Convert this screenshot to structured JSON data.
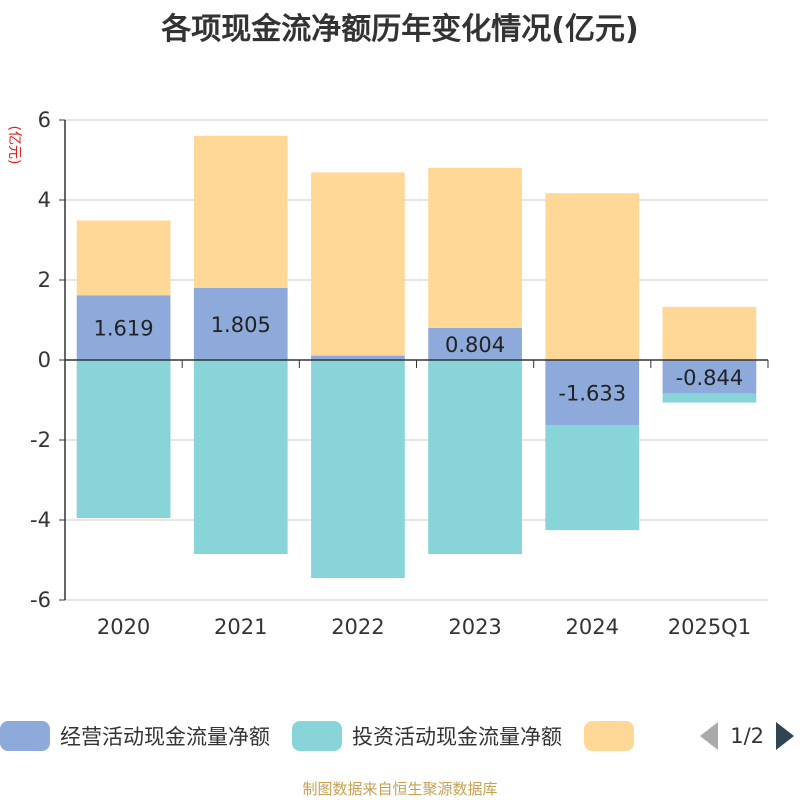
{
  "title": "各项现金流净额历年变化情况(亿元)",
  "source": "制图数据来自恒生聚源数据库",
  "pager": {
    "text": "1/2"
  },
  "chart_data": {
    "type": "bar",
    "stacked": true,
    "ylabel": "(亿元)",
    "ylim": [
      -6,
      6
    ],
    "yticks": [
      -6,
      -4,
      -2,
      0,
      2,
      4,
      6
    ],
    "grid": true,
    "legend_position": "bottom",
    "categories": [
      "2020",
      "2021",
      "2022",
      "2023",
      "2024",
      "2025Q1"
    ],
    "series": [
      {
        "name": "经营活动现金流量净额",
        "color": "#8eaadb",
        "values": [
          1.619,
          1.805,
          0.11,
          0.804,
          -1.633,
          -0.844
        ],
        "labels": [
          "1.619",
          "1.805",
          "",
          "0.804",
          "-1.633",
          "-0.844"
        ]
      },
      {
        "name": "投资活动现金流量净额",
        "color": "#88d4d8",
        "values": [
          -3.95,
          -4.85,
          -5.45,
          -4.85,
          -2.62,
          -0.22
        ],
        "labels": [
          "",
          "",
          "",
          "",
          "",
          ""
        ]
      },
      {
        "name": "",
        "color": "#ffd898",
        "values": [
          1.87,
          3.8,
          4.58,
          4.0,
          4.17,
          1.33
        ],
        "labels": [
          "",
          "",
          "",
          "",
          "",
          ""
        ]
      }
    ]
  }
}
